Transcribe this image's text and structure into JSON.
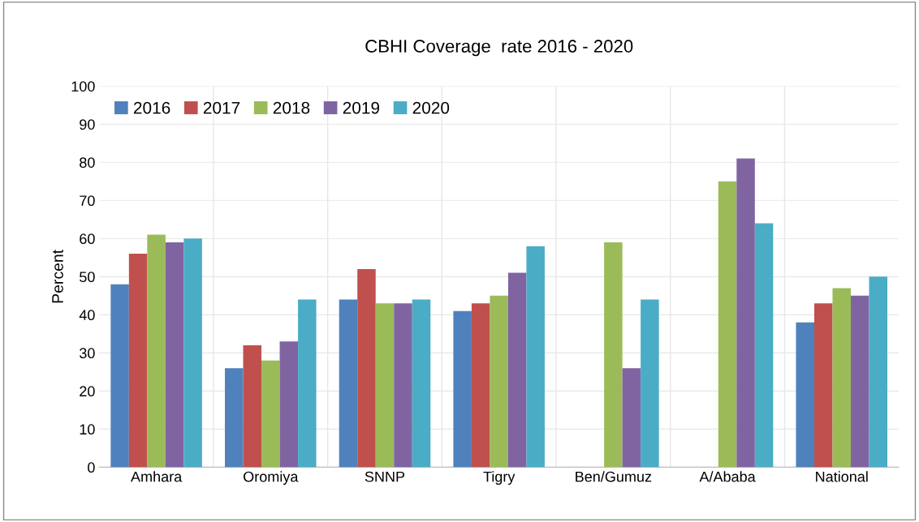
{
  "chart_data": {
    "type": "bar",
    "title": "CBHI Coverage  rate 2016 - 2020",
    "ylabel": "Percent",
    "categories": [
      "Amhara",
      "Oromiya",
      "SNNP",
      "Tigry",
      "Ben/Gumuz",
      "A/Ababa",
      "National"
    ],
    "series": [
      {
        "name": "2016",
        "color": "#4f81bd",
        "values": [
          48,
          26,
          44,
          41,
          null,
          null,
          38
        ]
      },
      {
        "name": "2017",
        "color": "#c0504d",
        "values": [
          56,
          32,
          52,
          43,
          null,
          null,
          43
        ]
      },
      {
        "name": "2018",
        "color": "#9bbb59",
        "values": [
          61,
          28,
          43,
          45,
          59,
          75,
          47
        ]
      },
      {
        "name": "2019",
        "color": "#8064a2",
        "values": [
          59,
          33,
          43,
          51,
          26,
          81,
          45
        ]
      },
      {
        "name": "2020",
        "color": "#4bacc6",
        "values": [
          60,
          44,
          44,
          58,
          44,
          64,
          50
        ]
      }
    ],
    "ylim": [
      0,
      100
    ],
    "yticks": [
      0,
      10,
      20,
      30,
      40,
      50,
      60,
      70,
      80,
      90,
      100
    ],
    "grid": true,
    "legend": "top left"
  }
}
